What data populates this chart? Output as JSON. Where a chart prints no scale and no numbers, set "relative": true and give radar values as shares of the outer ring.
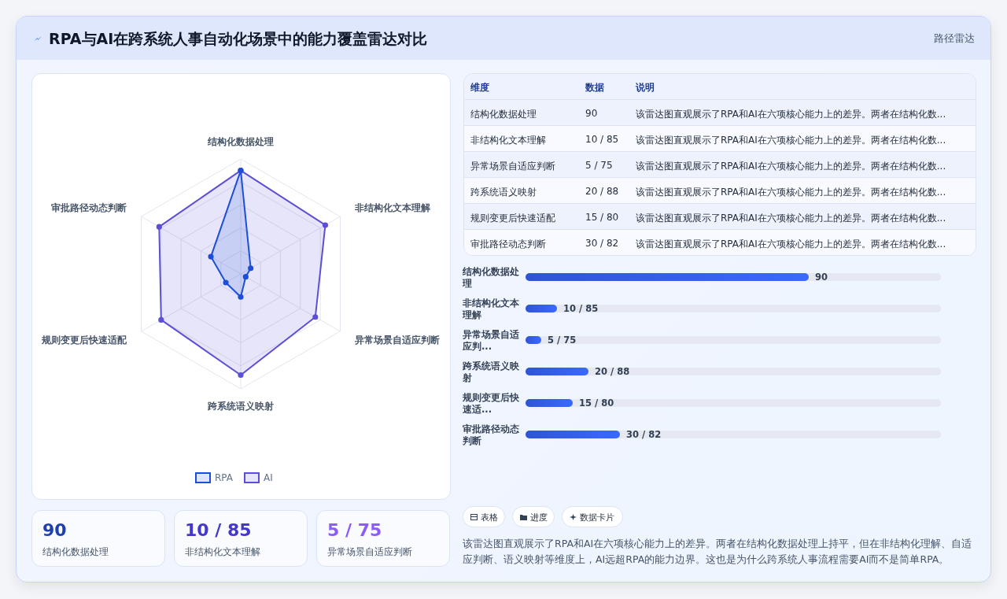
{
  "chart_data": [
    {
      "type": "other",
      "title": "RPA与AI在跨系统人事自动化场景中的能力覆盖雷达对比",
      "subtitle": "路径雷达"
    },
    {
      "type": "radar",
      "categories": [
        "结构化数据处理",
        "非结构化文本理解",
        "异常场景自适应判断",
        "跨系统语义映射",
        "规则变更后快速适配",
        "审批路径动态判断"
      ],
      "relative": true,
      "grid": true,
      "legend": "bottom",
      "marker": "circle",
      "series": [
        {
          "name": "RPA",
          "color": "#1d4ed8",
          "values": [
            0.9,
            0.1,
            0.05,
            0.2,
            0.15,
            0.3
          ]
        },
        {
          "name": "AI",
          "color": "#5b4fd6",
          "values": [
            0.9,
            0.85,
            0.75,
            0.88,
            0.8,
            0.82
          ]
        }
      ]
    },
    {
      "type": "other",
      "annotations": [
        "维度",
        "数据",
        "说明",
        "结构化数据处理",
        "90",
        "该雷达图直观展示了RPA和AI在六项核心能力上的差异。两者在结构化数...",
        "非结构化文本理解",
        "10 / 85",
        "该雷达图直观展示了RPA和AI在六项核心能力上的差异。两者在结构化数...",
        "异常场景自适应判断",
        "5 / 75",
        "该雷达图直观展示了RPA和AI在六项核心能力上的差异。两者在结构化数...",
        "跨系统语义映射",
        "20 / 88",
        "该雷达图直观展示了RPA和AI在六项核心能力上的差异。两者在结构化数...",
        "规则变更后快速适配",
        "15 / 80",
        "该雷达图直观展示了RPA和AI在六项核心能力上的差异。两者在结构化数...",
        "审批路径动态判断",
        "30 / 82",
        "该雷达图直观展示了RPA和AI在六项核心能力上的差异。两者在结构化数..."
      ]
    },
    {
      "type": "bar",
      "orientation": "horizontal",
      "categories": [
        "结构化数据处理",
        "非结构化文本理解",
        "异常场景自适应判...",
        "跨系统语义映射",
        "规则变更后快速适...",
        "审批路径动态判断"
      ],
      "values": [
        90,
        10,
        5,
        20,
        15,
        30
      ],
      "xlim": [
        0,
        132
      ],
      "color": "#2f55d4",
      "value_labels": [
        "90",
        "10 / 85",
        "5 / 75",
        "20 / 88",
        "15 / 80",
        "30 / 82"
      ]
    },
    {
      "type": "other",
      "annotations": [
        "90",
        "结构化数据处理",
        "10 / 85",
        "非结构化文本理解",
        "5 / 75",
        "异常场景自适应判断"
      ]
    },
    {
      "type": "other",
      "annotations": [
        "表格",
        "进度",
        "数据卡片",
        "该雷达图直观展示了RPA和AI在六项核心能力上的差异。两者在结构化数据处理上持平，但在非结构化理解、自适应判断、语义映射等维度上，AI远超RPA的能力边界。这也是为什么跨系统人事流程需要AI而不是简单RPA。"
      ]
    }
  ]
}
